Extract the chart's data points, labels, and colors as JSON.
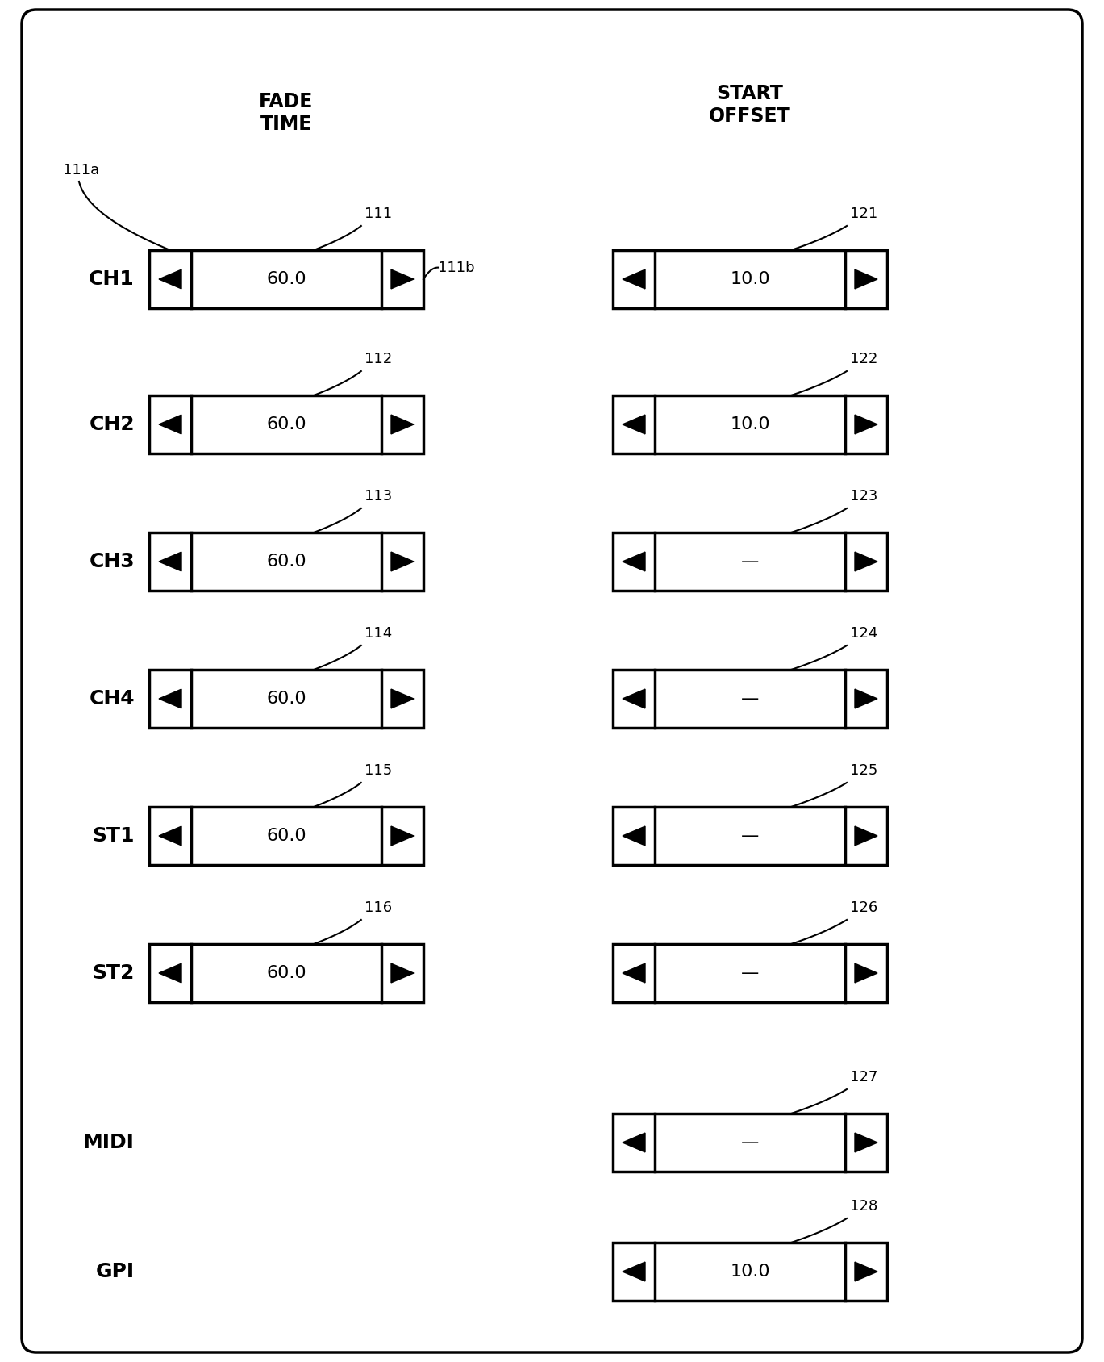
{
  "bg_color": "#ffffff",
  "rows": [
    {
      "label": "CH1",
      "fade_val": "60.0",
      "offset_val": "10.0",
      "fade_id": "111",
      "offset_id": "121",
      "has_fade": true
    },
    {
      "label": "CH2",
      "fade_val": "60.0",
      "offset_val": "10.0",
      "fade_id": "112",
      "offset_id": "122",
      "has_fade": true
    },
    {
      "label": "CH3",
      "fade_val": "60.0",
      "offset_val": "—",
      "fade_id": "113",
      "offset_id": "123",
      "has_fade": true
    },
    {
      "label": "CH4",
      "fade_val": "60.0",
      "offset_val": "—",
      "fade_id": "114",
      "offset_id": "124",
      "has_fade": true
    },
    {
      "label": "ST1",
      "fade_val": "60.0",
      "offset_val": "—",
      "fade_id": "115",
      "offset_id": "125",
      "has_fade": true
    },
    {
      "label": "ST2",
      "fade_val": "60.0",
      "offset_val": "—",
      "fade_id": "116",
      "offset_id": "126",
      "has_fade": true
    },
    {
      "label": "MIDI",
      "fade_val": null,
      "offset_val": "—",
      "fade_id": null,
      "offset_id": "127",
      "has_fade": false
    },
    {
      "label": "GPI",
      "fade_val": null,
      "offset_val": "10.0",
      "fade_id": null,
      "offset_id": "128",
      "has_fade": false
    }
  ],
  "fade_header": "FADE\nTIME",
  "offset_header": "START\nOFFSET",
  "font_size_label": 18,
  "font_size_val": 16,
  "font_size_id": 13,
  "font_size_header": 17
}
